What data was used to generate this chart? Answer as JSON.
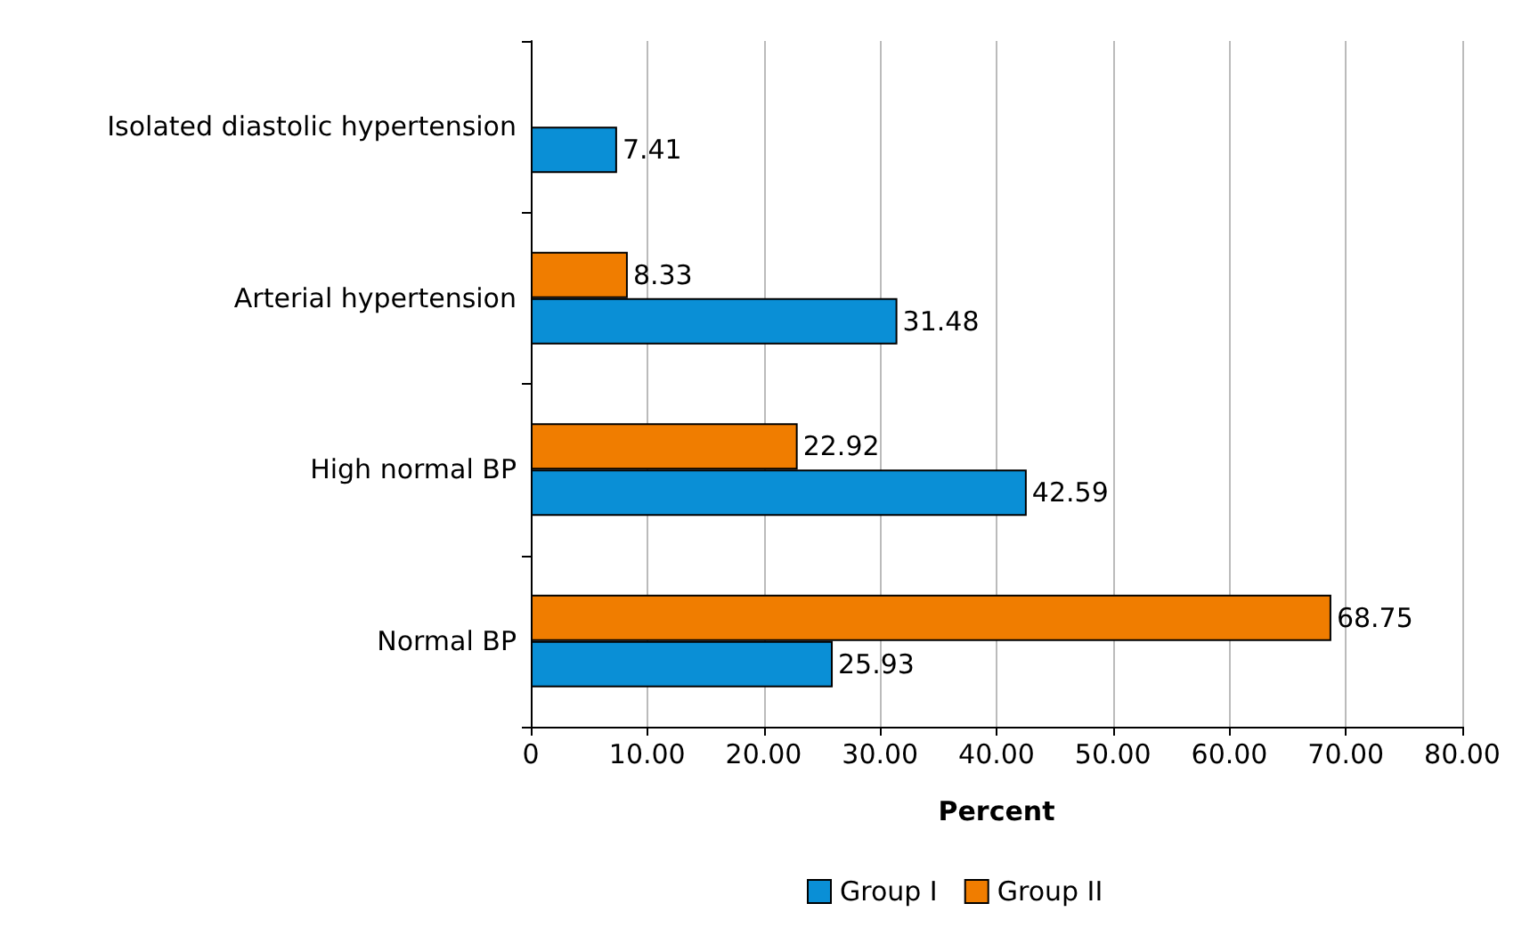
{
  "chart_data": {
    "type": "bar",
    "orientation": "horizontal",
    "xlabel": "Percent",
    "categories": [
      "Isolated diastolic hypertension",
      "Arterial hypertension",
      "High normal BP",
      "Normal BP"
    ],
    "series": [
      {
        "name": "Group I",
        "color": "#0a8fd6",
        "values": [
          7.41,
          31.48,
          42.59,
          25.93
        ]
      },
      {
        "name": "Group II",
        "color": "#f07d00",
        "values": [
          null,
          8.33,
          22.92,
          68.75
        ]
      }
    ],
    "xlim": [
      0,
      80
    ],
    "xticks": [
      0,
      {
        "value": 10,
        "label": "10.00"
      },
      {
        "value": 20,
        "label": "20.00"
      },
      {
        "value": 30,
        "label": "30.00"
      },
      {
        "value": 40,
        "label": "40.00"
      },
      {
        "value": 50,
        "label": "50.00"
      },
      {
        "value": 60,
        "label": "60.00"
      },
      {
        "value": 70,
        "label": "70.00"
      },
      {
        "value": 80,
        "label": "80.00"
      }
    ],
    "grid": "x",
    "legend": "bottom",
    "data_labels": true
  }
}
